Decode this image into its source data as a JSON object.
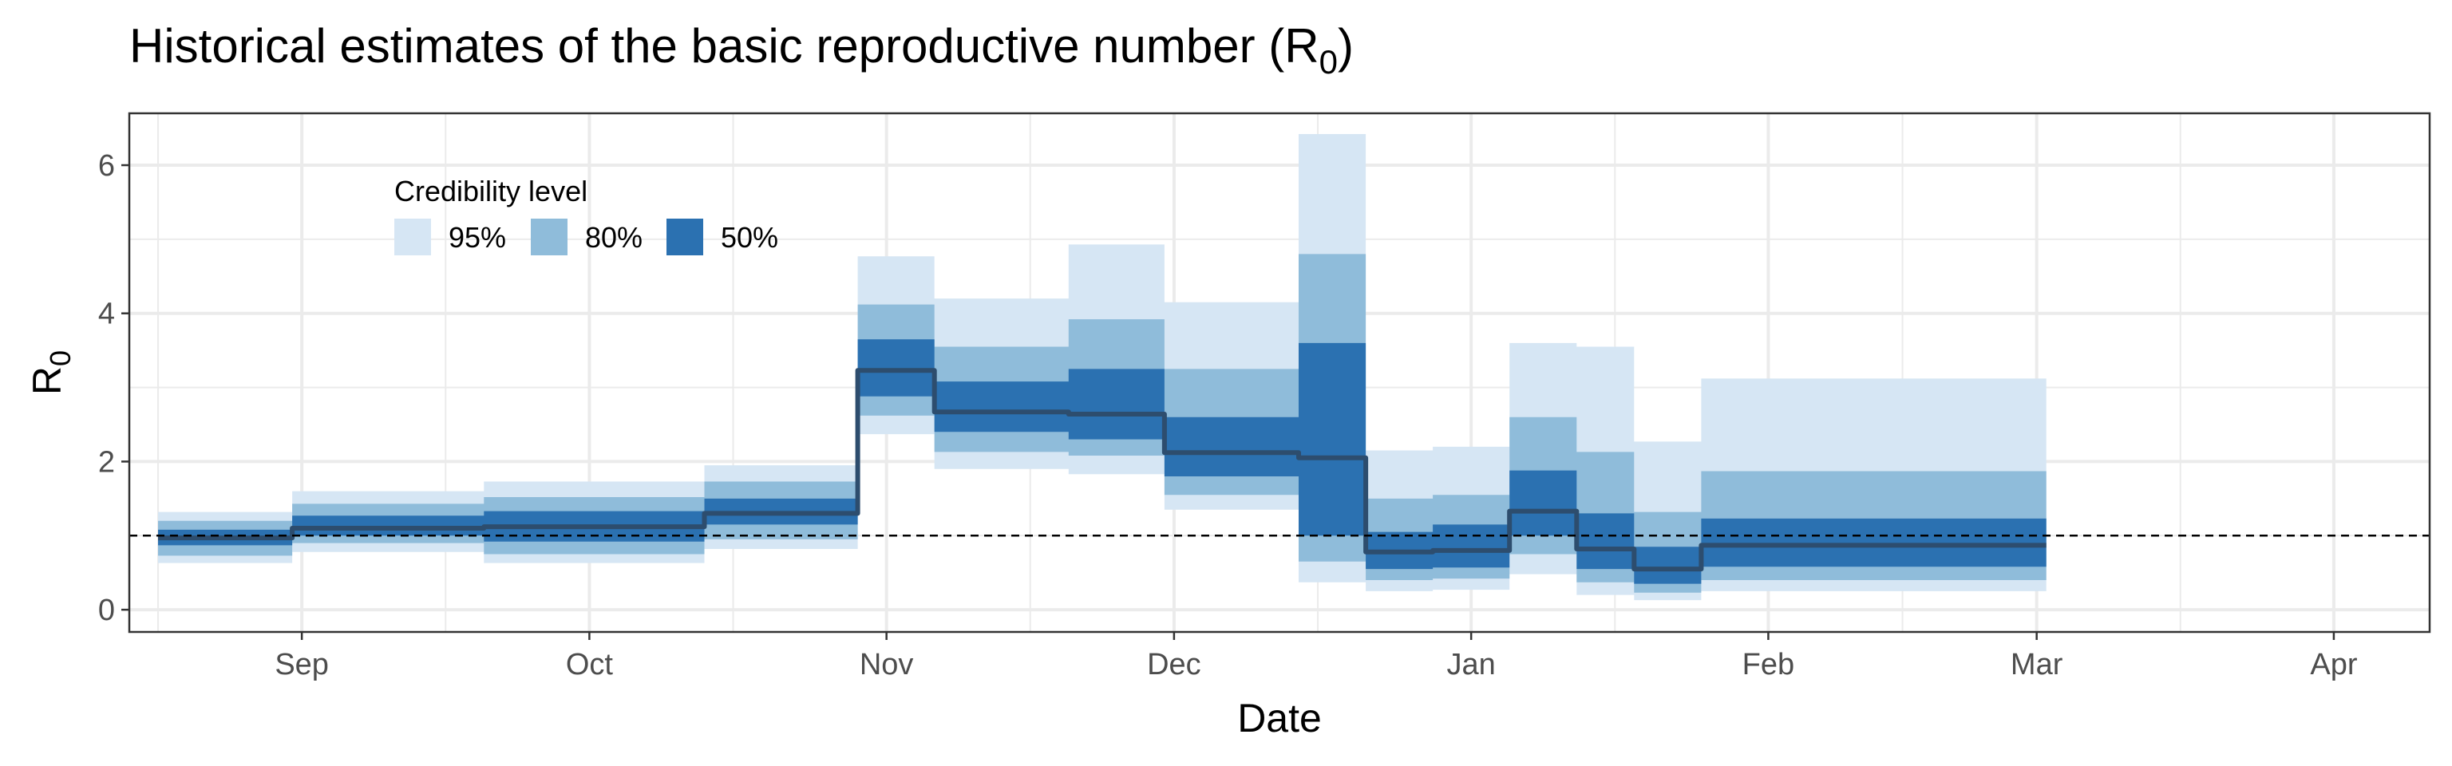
{
  "chart_data": {
    "type": "area",
    "title": "Historical estimates of the basic reproductive number (R",
    "title_subscript": "0",
    "title_suffix": ")",
    "xlabel": "Date",
    "ylabel": "R",
    "ylabel_subscript": "0",
    "xlim": [
      "2021-08-14",
      "2022-04-11"
    ],
    "ylim": [
      -0.3,
      6.7
    ],
    "y_ticks": [
      0,
      2,
      4,
      6
    ],
    "x_ticks": [
      {
        "date": "2021-09-01",
        "label": "Sep"
      },
      {
        "date": "2021-10-01",
        "label": "Oct"
      },
      {
        "date": "2021-11-01",
        "label": "Nov"
      },
      {
        "date": "2021-12-01",
        "label": "Dec"
      },
      {
        "date": "2022-01-01",
        "label": "Jan"
      },
      {
        "date": "2022-02-01",
        "label": "Feb"
      },
      {
        "date": "2022-03-01",
        "label": "Mar"
      },
      {
        "date": "2022-04-01",
        "label": "Apr"
      }
    ],
    "x_minor_ticks": [
      "2021-08-17",
      "2021-09-16",
      "2021-10-16",
      "2021-11-16",
      "2021-12-16",
      "2022-01-16",
      "2022-02-15",
      "2022-03-16"
    ],
    "reference_line": 1,
    "grid": true,
    "legend": {
      "title": "Credibility level",
      "placement": "top-left",
      "items": [
        {
          "label": "95%",
          "color": "#d6e6f4"
        },
        {
          "label": "80%",
          "color": "#8fbcda"
        },
        {
          "label": "50%",
          "color": "#2b71b1"
        }
      ]
    },
    "colors": {
      "median": "#2d4d6e",
      "ci95": "#d6e6f4",
      "ci80": "#8fbcda",
      "ci50": "#2b71b1"
    },
    "segments": [
      {
        "start": "2021-08-17",
        "end": "2021-08-30",
        "median": 0.97,
        "ci95": [
          0.63,
          1.32
        ],
        "ci80": [
          0.73,
          1.2
        ],
        "ci50": [
          0.87,
          1.08
        ]
      },
      {
        "start": "2021-08-31",
        "end": "2021-09-19",
        "median": 1.1,
        "ci95": [
          0.78,
          1.6
        ],
        "ci80": [
          0.9,
          1.43
        ],
        "ci50": [
          1.0,
          1.27
        ]
      },
      {
        "start": "2021-09-20",
        "end": "2021-10-12",
        "median": 1.12,
        "ci95": [
          0.63,
          1.73
        ],
        "ci80": [
          0.75,
          1.52
        ],
        "ci50": [
          0.92,
          1.33
        ]
      },
      {
        "start": "2021-10-13",
        "end": "2021-10-28",
        "median": 1.3,
        "ci95": [
          0.82,
          1.95
        ],
        "ci80": [
          0.95,
          1.73
        ],
        "ci50": [
          1.15,
          1.5
        ]
      },
      {
        "start": "2021-10-29",
        "end": "2021-11-05",
        "median": 3.23,
        "ci95": [
          2.37,
          4.77
        ],
        "ci80": [
          2.62,
          4.12
        ],
        "ci50": [
          2.88,
          3.65
        ]
      },
      {
        "start": "2021-11-06",
        "end": "2021-11-19",
        "median": 2.67,
        "ci95": [
          1.9,
          4.2
        ],
        "ci80": [
          2.13,
          3.55
        ],
        "ci50": [
          2.4,
          3.08
        ]
      },
      {
        "start": "2021-11-20",
        "end": "2021-11-29",
        "median": 2.64,
        "ci95": [
          1.83,
          4.93
        ],
        "ci80": [
          2.08,
          3.92
        ],
        "ci50": [
          2.3,
          3.25
        ]
      },
      {
        "start": "2021-11-30",
        "end": "2021-12-13",
        "median": 2.12,
        "ci95": [
          1.35,
          4.15
        ],
        "ci80": [
          1.55,
          3.25
        ],
        "ci50": [
          1.8,
          2.6
        ]
      },
      {
        "start": "2021-12-14",
        "end": "2021-12-20",
        "median": 2.05,
        "ci95": [
          0.37,
          6.42
        ],
        "ci80": [
          0.65,
          4.8
        ],
        "ci50": [
          1.0,
          3.6
        ]
      },
      {
        "start": "2021-12-21",
        "end": "2021-12-27",
        "median": 0.78,
        "ci95": [
          0.25,
          2.15
        ],
        "ci80": [
          0.4,
          1.5
        ],
        "ci50": [
          0.55,
          1.05
        ]
      },
      {
        "start": "2021-12-28",
        "end": "2022-01-04",
        "median": 0.8,
        "ci95": [
          0.27,
          2.2
        ],
        "ci80": [
          0.42,
          1.55
        ],
        "ci50": [
          0.57,
          1.15
        ]
      },
      {
        "start": "2022-01-05",
        "end": "2022-01-11",
        "median": 1.33,
        "ci95": [
          0.48,
          3.6
        ],
        "ci80": [
          0.75,
          2.6
        ],
        "ci50": [
          1.0,
          1.88
        ]
      },
      {
        "start": "2022-01-12",
        "end": "2022-01-17",
        "median": 0.82,
        "ci95": [
          0.2,
          3.55
        ],
        "ci80": [
          0.37,
          2.13
        ],
        "ci50": [
          0.55,
          1.3
        ]
      },
      {
        "start": "2022-01-18",
        "end": "2022-01-24",
        "median": 0.55,
        "ci95": [
          0.13,
          2.27
        ],
        "ci80": [
          0.23,
          1.32
        ],
        "ci50": [
          0.35,
          0.85
        ]
      },
      {
        "start": "2022-01-25",
        "end": "2022-03-01",
        "median": 0.87,
        "ci95": [
          0.25,
          3.12
        ],
        "ci80": [
          0.4,
          1.87
        ],
        "ci50": [
          0.58,
          1.23
        ]
      }
    ]
  }
}
